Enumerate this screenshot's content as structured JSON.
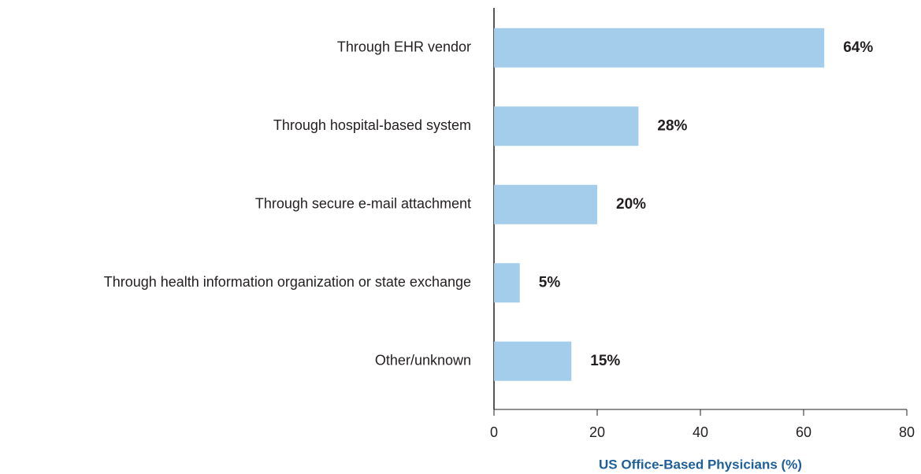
{
  "chart_data": {
    "type": "bar",
    "orientation": "horizontal",
    "x_label": "US Office-Based Physicians (%)",
    "categories": [
      "Through EHR vendor",
      "Through hospital-based system",
      "Through secure e-mail attachment",
      "Through health information organization or state exchange",
      "Other/unknown"
    ],
    "values": [
      64,
      28,
      20,
      5,
      15
    ],
    "value_labels": [
      "64%",
      "28%",
      "20%",
      "5%",
      "15%"
    ],
    "color": "#a4cdec",
    "xlim": [
      0,
      80
    ],
    "xticks": [
      0,
      20,
      40,
      60,
      80
    ]
  }
}
